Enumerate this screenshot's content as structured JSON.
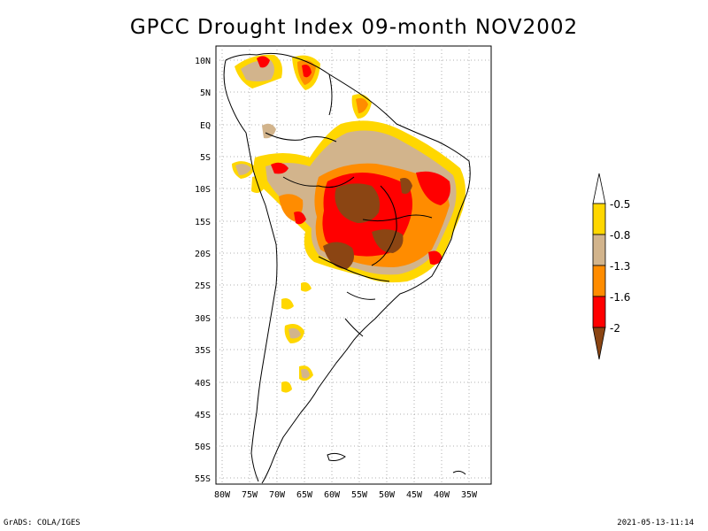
{
  "title": "GPCC Drought Index 09-month NOV2002",
  "footer_left": "GrADS: COLA/IGES",
  "footer_right": "2021-05-13-11:14",
  "map": {
    "region": "South America",
    "lon_range": [
      -80,
      -30
    ],
    "lat_range": [
      -56,
      12
    ],
    "lat_labels": [
      "10N",
      "5N",
      "EQ",
      "5S",
      "10S",
      "15S",
      "20S",
      "25S",
      "30S",
      "35S",
      "40S",
      "45S",
      "50S",
      "55S"
    ],
    "lon_labels": [
      "80W",
      "75W",
      "70W",
      "65W",
      "60W",
      "55W",
      "50W",
      "45W",
      "40W",
      "35W"
    ]
  },
  "legend": {
    "labels": [
      "-0.5",
      "-0.8",
      "-1.3",
      "-1.6",
      "-2"
    ],
    "colors": {
      "c1": "#ffd700",
      "c2": "#d2b48c",
      "c3": "#ff8c00",
      "c4": "#ff0000",
      "c5": "#8b4513",
      "top": "#ffffff"
    }
  }
}
